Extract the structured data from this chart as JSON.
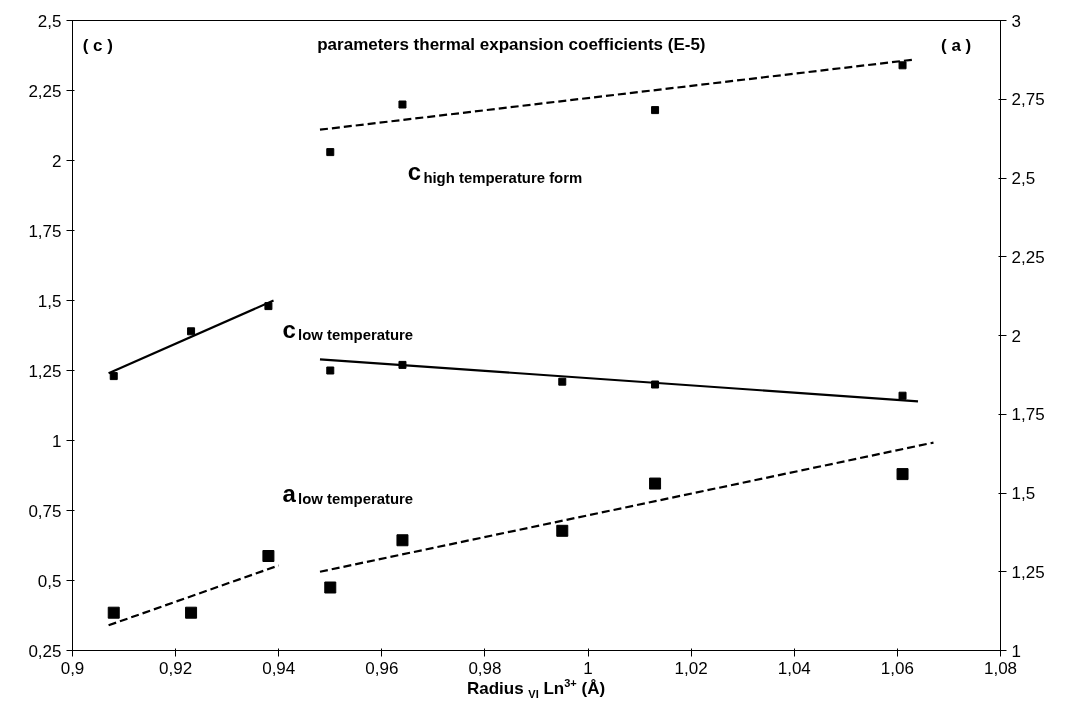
{
  "chart_data": {
    "type": "scatter",
    "title": "parameters thermal expansion coefficients (E-5)",
    "xlabel": "Radius $_{VI}$ Ln$^{3+}$ (Å)",
    "xlim": [
      0.9,
      1.08
    ],
    "xticks": [
      {
        "value": 0.9,
        "label": "0,9"
      },
      {
        "value": 0.92,
        "label": "0,92"
      },
      {
        "value": 0.94,
        "label": "0,94"
      },
      {
        "value": 0.96,
        "label": "0,96"
      },
      {
        "value": 0.98,
        "label": "0,98"
      },
      {
        "value": 1,
        "label": "1"
      },
      {
        "value": 1.02,
        "label": "1,02"
      },
      {
        "value": 1.04,
        "label": "1,04"
      },
      {
        "value": 1.06,
        "label": "1,06"
      },
      {
        "value": 1.08,
        "label": "1,08"
      }
    ],
    "ylim": [
      0.25,
      2.5
    ],
    "yticks": [
      {
        "value": 0.25,
        "label": "0,25"
      },
      {
        "value": 0.5,
        "label": "0,5"
      },
      {
        "value": 0.75,
        "label": "0,75"
      },
      {
        "value": 1,
        "label": "1"
      },
      {
        "value": 1.25,
        "label": "1,25"
      },
      {
        "value": 1.5,
        "label": "1,5"
      },
      {
        "value": 1.75,
        "label": "1,75"
      },
      {
        "value": 2,
        "label": "2"
      },
      {
        "value": 2.25,
        "label": "2,25"
      },
      {
        "value": 2.5,
        "label": "2,5"
      }
    ],
    "y2lim": [
      1,
      3
    ],
    "y2ticks": [
      1,
      {
        "value": 1.25,
        "label": "1,25"
      },
      {
        "value": 1.5,
        "label": "1,5"
      },
      {
        "value": 1.75,
        "label": "1,75"
      },
      2,
      {
        "value": 2.25,
        "label": "2,25"
      },
      {
        "value": 2.5,
        "label": "2,5"
      },
      {
        "value": 2.75,
        "label": "2,75"
      },
      3
    ],
    "grid": false,
    "annotations": [
      "( c )",
      "( a )",
      "c$_{low temperature}$",
      "c$_{high temperature form}$",
      "a$_{low temperature}$"
    ],
    "series": [
      {
        "marker": "square",
        "color": "#000000",
        "x": [
          0.908,
          0.923,
          0.938,
          0.95,
          0.964,
          0.995,
          1.013,
          1.061
        ],
        "values": [
          1.23,
          1.39,
          1.48,
          1.25,
          1.27,
          1.21,
          1.2,
          1.16
        ]
      },
      {
        "marker": "square",
        "color": "#000000",
        "x": [
          0.95,
          0.964,
          1.013,
          1.061
        ],
        "values": [
          2.03,
          2.2,
          2.18,
          2.34
        ]
      },
      {
        "marker": "square",
        "color": "#000000",
        "axis": "y2",
        "x": [
          0.908,
          0.923,
          0.938,
          0.95,
          0.964,
          0.995,
          1.013,
          1.061
        ],
        "values": [
          1.12,
          1.12,
          1.3,
          1.2,
          1.35,
          1.38,
          1.53,
          1.56
        ]
      },
      {
        "type": "line",
        "color": "#000000",
        "line_style": "solid",
        "x": [
          0.907,
          0.939
        ],
        "values": [
          1.24,
          1.5
        ]
      },
      {
        "type": "line",
        "color": "#000000",
        "line_style": "solid",
        "x": [
          0.948,
          1.064
        ],
        "values": [
          1.29,
          1.14
        ]
      },
      {
        "type": "line",
        "color": "#000000",
        "line_style": "dashed",
        "x": [
          0.948,
          1.063
        ],
        "values": [
          2.11,
          2.36
        ]
      },
      {
        "type": "line",
        "color": "#000000",
        "line_style": "dashed",
        "axis": "y2",
        "x": [
          0.907,
          0.94
        ],
        "values": [
          1.08,
          1.27
        ]
      },
      {
        "type": "line",
        "color": "#000000",
        "line_style": "dashed",
        "axis": "y2",
        "x": [
          0.948,
          1.067
        ],
        "values": [
          1.25,
          1.66
        ]
      }
    ]
  }
}
